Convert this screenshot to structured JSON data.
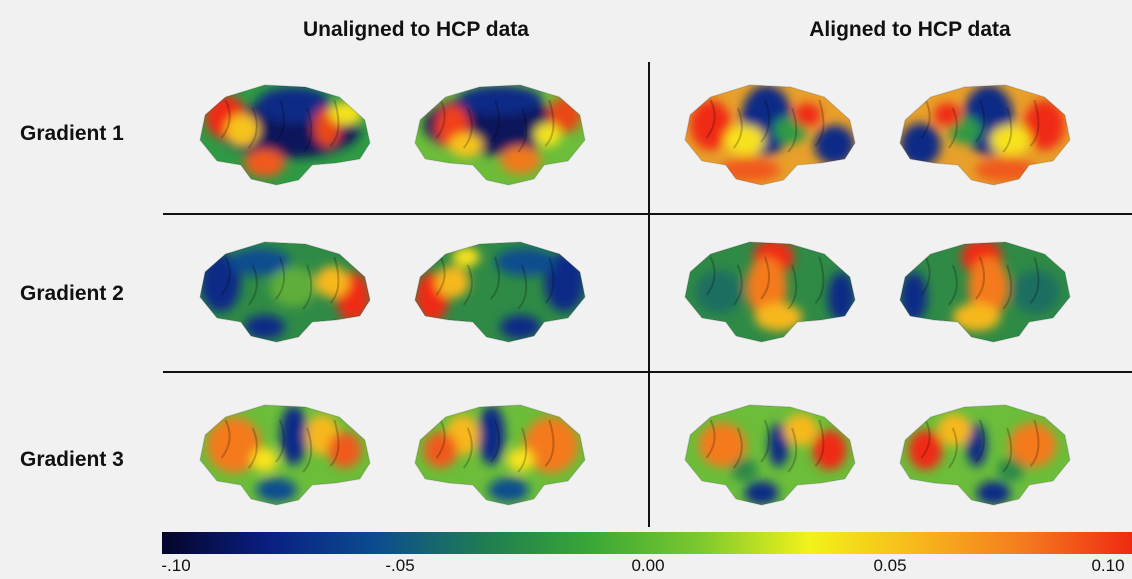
{
  "figure": {
    "column_titles": [
      "Unaligned to HCP data",
      "Aligned to HCP data"
    ],
    "row_labels": [
      "Gradient 1",
      "Gradient 2",
      "Gradient 3"
    ],
    "colorbar": {
      "ticks": [
        "-.10",
        "-.05",
        "0.00",
        "0.05",
        "0.10"
      ],
      "colors": [
        "#05052a",
        "#0a1f82",
        "#0b4d8f",
        "#1f7d52",
        "#3aa836",
        "#7dc92e",
        "#f2f21a",
        "#f7b81b",
        "#f47a1e",
        "#f02a12"
      ],
      "range": [
        -0.1,
        0.1
      ]
    },
    "brains": [
      {
        "row": 1,
        "group": "Unaligned to HCP data",
        "hemisphere": "left",
        "base": "#2f9a44",
        "spots": [
          [
            "#08125a",
            0.52,
            0.45,
            0.42,
            0.28
          ],
          [
            "#0b2c86",
            0.55,
            0.2,
            0.22,
            0.18
          ],
          [
            "#f02a12",
            0.15,
            0.32,
            0.12,
            0.22
          ],
          [
            "#f7c31b",
            0.25,
            0.45,
            0.1,
            0.16
          ],
          [
            "#f05a1a",
            0.38,
            0.78,
            0.12,
            0.14
          ],
          [
            "#e84a12",
            0.75,
            0.42,
            0.08,
            0.2
          ],
          [
            "#f2e21a",
            0.86,
            0.28,
            0.1,
            0.12
          ]
        ]
      },
      {
        "row": 1,
        "group": "Unaligned to HCP data",
        "hemisphere": "right",
        "base": "#6bbd3a",
        "spots": [
          [
            "#08125a",
            0.45,
            0.4,
            0.4,
            0.3
          ],
          [
            "#0b2c86",
            0.5,
            0.15,
            0.25,
            0.15
          ],
          [
            "#f0401a",
            0.22,
            0.42,
            0.1,
            0.22
          ],
          [
            "#f7c31b",
            0.3,
            0.6,
            0.1,
            0.12
          ],
          [
            "#f07a1a",
            0.62,
            0.75,
            0.12,
            0.14
          ],
          [
            "#e84a12",
            0.88,
            0.3,
            0.1,
            0.18
          ],
          [
            "#f2e21a",
            0.78,
            0.5,
            0.08,
            0.12
          ]
        ]
      },
      {
        "row": 1,
        "group": "Aligned to HCP data",
        "hemisphere": "left",
        "base": "#e8a02a",
        "spots": [
          [
            "#0b2c86",
            0.48,
            0.35,
            0.15,
            0.35
          ],
          [
            "#f02a12",
            0.15,
            0.4,
            0.12,
            0.25
          ],
          [
            "#f7e21a",
            0.35,
            0.55,
            0.12,
            0.15
          ],
          [
            "#0b2c86",
            0.88,
            0.6,
            0.12,
            0.2
          ],
          [
            "#2f9a44",
            0.62,
            0.45,
            0.1,
            0.14
          ],
          [
            "#f05a1a",
            0.38,
            0.85,
            0.18,
            0.12
          ],
          [
            "#f02a12",
            0.72,
            0.3,
            0.08,
            0.12
          ]
        ]
      },
      {
        "row": 1,
        "group": "Aligned to HCP data",
        "hemisphere": "right",
        "base": "#e8a02a",
        "spots": [
          [
            "#0b2c86",
            0.52,
            0.35,
            0.15,
            0.35
          ],
          [
            "#0b2c86",
            0.12,
            0.6,
            0.12,
            0.22
          ],
          [
            "#f02a12",
            0.85,
            0.4,
            0.12,
            0.25
          ],
          [
            "#f7e21a",
            0.65,
            0.55,
            0.12,
            0.15
          ],
          [
            "#2f9a44",
            0.38,
            0.45,
            0.1,
            0.14
          ],
          [
            "#f05a1a",
            0.62,
            0.85,
            0.18,
            0.12
          ],
          [
            "#f02a12",
            0.28,
            0.3,
            0.08,
            0.12
          ]
        ]
      },
      {
        "row": 2,
        "group": "Unaligned to HCP data",
        "hemisphere": "left",
        "base": "#2f8a46",
        "spots": [
          [
            "#0b2c86",
            0.12,
            0.4,
            0.12,
            0.3
          ],
          [
            "#0b4d8f",
            0.35,
            0.2,
            0.18,
            0.14
          ],
          [
            "#f02a12",
            0.9,
            0.55,
            0.1,
            0.25
          ],
          [
            "#f7b81b",
            0.78,
            0.4,
            0.1,
            0.16
          ],
          [
            "#0b2c86",
            0.38,
            0.85,
            0.12,
            0.12
          ],
          [
            "#5fae3a",
            0.55,
            0.45,
            0.14,
            0.2
          ]
        ]
      },
      {
        "row": 2,
        "group": "Unaligned to HCP data",
        "hemisphere": "right",
        "base": "#2f8a46",
        "spots": [
          [
            "#0b2c86",
            0.88,
            0.4,
            0.12,
            0.3
          ],
          [
            "#0b4d8f",
            0.65,
            0.2,
            0.18,
            0.14
          ],
          [
            "#f02a12",
            0.1,
            0.55,
            0.1,
            0.25
          ],
          [
            "#f7b81b",
            0.22,
            0.4,
            0.1,
            0.16
          ],
          [
            "#0b2c86",
            0.62,
            0.85,
            0.12,
            0.12
          ],
          [
            "#f7e21a",
            0.3,
            0.15,
            0.08,
            0.1
          ]
        ]
      },
      {
        "row": 2,
        "group": "Aligned to HCP data",
        "hemisphere": "left",
        "base": "#2f8a46",
        "spots": [
          [
            "#f02a12",
            0.52,
            0.15,
            0.12,
            0.18
          ],
          [
            "#f47a1e",
            0.48,
            0.45,
            0.12,
            0.3
          ],
          [
            "#f7b81b",
            0.55,
            0.75,
            0.14,
            0.14
          ],
          [
            "#0b2c86",
            0.92,
            0.55,
            0.08,
            0.25
          ],
          [
            "#1f6e60",
            0.2,
            0.5,
            0.14,
            0.22
          ]
        ]
      },
      {
        "row": 2,
        "group": "Aligned to HCP data",
        "hemisphere": "right",
        "base": "#2f8a46",
        "spots": [
          [
            "#f02a12",
            0.48,
            0.15,
            0.12,
            0.18
          ],
          [
            "#f47a1e",
            0.52,
            0.45,
            0.12,
            0.3
          ],
          [
            "#f7b81b",
            0.45,
            0.75,
            0.14,
            0.14
          ],
          [
            "#0b2c86",
            0.08,
            0.55,
            0.08,
            0.25
          ],
          [
            "#1f6e60",
            0.8,
            0.5,
            0.14,
            0.22
          ]
        ]
      },
      {
        "row": 3,
        "group": "Unaligned to HCP data",
        "hemisphere": "left",
        "base": "#6bbd3a",
        "spots": [
          [
            "#f47a1e",
            0.2,
            0.4,
            0.16,
            0.28
          ],
          [
            "#0b2c86",
            0.55,
            0.3,
            0.08,
            0.3
          ],
          [
            "#f7b81b",
            0.72,
            0.3,
            0.1,
            0.2
          ],
          [
            "#f05a1a",
            0.85,
            0.45,
            0.1,
            0.18
          ],
          [
            "#0b4d8f",
            0.45,
            0.85,
            0.12,
            0.12
          ],
          [
            "#f7e21a",
            0.38,
            0.55,
            0.08,
            0.12
          ]
        ]
      },
      {
        "row": 3,
        "group": "Unaligned to HCP data",
        "hemisphere": "right",
        "base": "#6bbd3a",
        "spots": [
          [
            "#f47a1e",
            0.8,
            0.4,
            0.16,
            0.28
          ],
          [
            "#0b2c86",
            0.45,
            0.3,
            0.08,
            0.3
          ],
          [
            "#f7b81b",
            0.28,
            0.3,
            0.1,
            0.2
          ],
          [
            "#f05a1a",
            0.15,
            0.45,
            0.1,
            0.18
          ],
          [
            "#0b4d8f",
            0.55,
            0.85,
            0.12,
            0.12
          ],
          [
            "#f7e21a",
            0.62,
            0.55,
            0.08,
            0.12
          ]
        ]
      },
      {
        "row": 3,
        "group": "Aligned to HCP data",
        "hemisphere": "left",
        "base": "#6bbd3a",
        "spots": [
          [
            "#f47a1e",
            0.22,
            0.4,
            0.14,
            0.22
          ],
          [
            "#0b2c86",
            0.55,
            0.4,
            0.06,
            0.22
          ],
          [
            "#f02a12",
            0.85,
            0.45,
            0.1,
            0.2
          ],
          [
            "#0b2c86",
            0.45,
            0.88,
            0.1,
            0.12
          ],
          [
            "#f7b81b",
            0.68,
            0.25,
            0.1,
            0.16
          ],
          [
            "#2f8a46",
            0.35,
            0.65,
            0.08,
            0.12
          ]
        ]
      },
      {
        "row": 3,
        "group": "Aligned to HCP data",
        "hemisphere": "right",
        "base": "#6bbd3a",
        "spots": [
          [
            "#f47a1e",
            0.78,
            0.4,
            0.14,
            0.22
          ],
          [
            "#0b2c86",
            0.45,
            0.4,
            0.06,
            0.22
          ],
          [
            "#f02a12",
            0.15,
            0.45,
            0.1,
            0.2
          ],
          [
            "#0b2c86",
            0.55,
            0.88,
            0.1,
            0.12
          ],
          [
            "#f7b81b",
            0.32,
            0.25,
            0.1,
            0.16
          ],
          [
            "#2f8a46",
            0.65,
            0.65,
            0.08,
            0.12
          ]
        ]
      }
    ]
  }
}
